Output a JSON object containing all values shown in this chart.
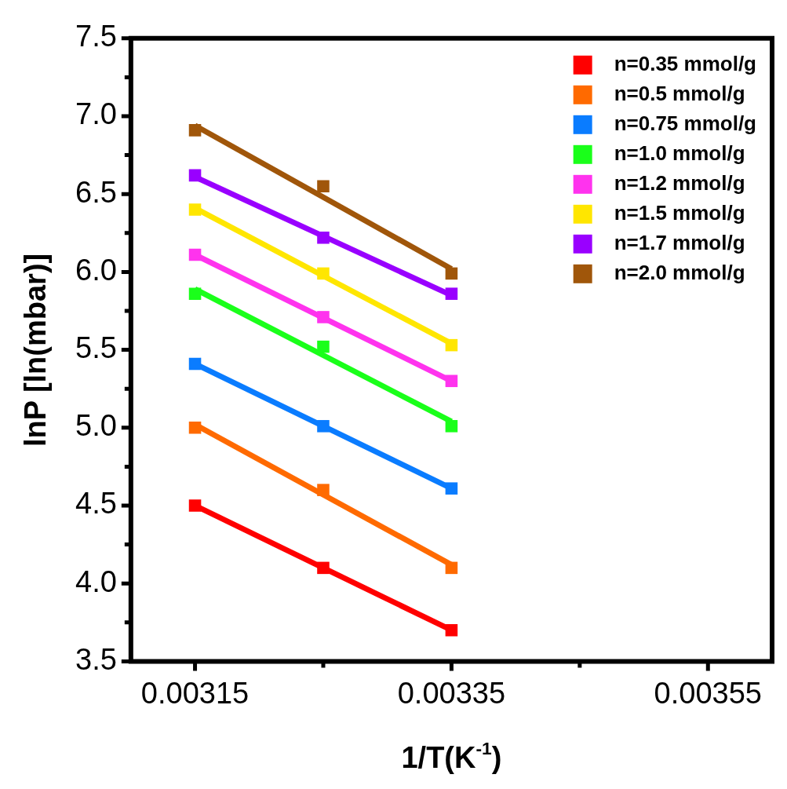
{
  "chart_data": {
    "type": "scatter",
    "xlabel": "1/T(K$^{-1}$)",
    "ylabel": "lnP [ln(mbar)]",
    "xlim": [
      0.0031,
      0.0036
    ],
    "xticks": [
      0.00315,
      {
        "value": 0.00325,
        "label": null
      },
      0.00335,
      {
        "value": 0.00345,
        "label": null
      },
      0.00355
    ],
    "ylim": [
      3.5,
      7.5
    ],
    "yticks": [
      3.5,
      {
        "value": 3.75,
        "label": null
      },
      {
        "value": 4,
        "label": "4.0"
      },
      {
        "value": 4.25,
        "label": null
      },
      4.5,
      {
        "value": 4.75,
        "label": null
      },
      {
        "value": 5,
        "label": "5.0"
      },
      {
        "value": 5.25,
        "label": null
      },
      5.5,
      {
        "value": 5.75,
        "label": null
      },
      {
        "value": 6,
        "label": "6.0"
      },
      {
        "value": 6.25,
        "label": null
      },
      6.5,
      {
        "value": 6.75,
        "label": null
      },
      {
        "value": 7,
        "label": "7.0"
      },
      {
        "value": 7.25,
        "label": null
      },
      7.5
    ],
    "marker": "square",
    "legend": "top right",
    "line_style": "solid",
    "series": [
      {
        "name": "n=0.35 mmol/g",
        "color": "#ff0000",
        "x": [
          0.00315,
          0.00325,
          0.00335
        ],
        "values": [
          4.5,
          4.1,
          3.7
        ]
      },
      {
        "name": "n=0.5 mmol/g",
        "color": "#ff6a00",
        "x": [
          0.00315,
          0.00325,
          0.00335
        ],
        "values": [
          5.0,
          4.6,
          4.1
        ]
      },
      {
        "name": "n=0.75 mmol/g",
        "color": "#0a7cff",
        "x": [
          0.00315,
          0.00325,
          0.00335
        ],
        "values": [
          5.41,
          5.01,
          4.61
        ]
      },
      {
        "name": "n=1.0 mmol/g",
        "color": "#1aff1a",
        "x": [
          0.00315,
          0.00325,
          0.00335
        ],
        "values": [
          5.86,
          5.52,
          5.01
        ]
      },
      {
        "name": "n=1.2 mmol/g",
        "color": "#ff33ee",
        "x": [
          0.00315,
          0.00325,
          0.00335
        ],
        "values": [
          6.11,
          5.71,
          5.3
        ]
      },
      {
        "name": "n=1.5 mmol/g",
        "color": "#ffe600",
        "x": [
          0.00315,
          0.00325,
          0.00335
        ],
        "values": [
          6.4,
          5.99,
          5.53
        ]
      },
      {
        "name": "n=1.7 mmol/g",
        "color": "#9900ff",
        "x": [
          0.00315,
          0.00325,
          0.00335
        ],
        "values": [
          6.62,
          6.22,
          5.86
        ]
      },
      {
        "name": "n=2.0 mmol/g",
        "color": "#a0560a",
        "x": [
          0.00315,
          0.00325,
          0.00335
        ],
        "values": [
          6.91,
          6.55,
          5.99
        ]
      },
      {
        "type": "line",
        "marker": "none",
        "color": "#ff0000",
        "x": [
          0.00315,
          0.00335
        ],
        "values": [
          4.5,
          3.7
        ]
      },
      {
        "type": "line",
        "marker": "none",
        "color": "#ff6a00",
        "x": [
          0.00315,
          0.00335
        ],
        "values": [
          5.02,
          4.12
        ]
      },
      {
        "type": "line",
        "marker": "none",
        "color": "#0a7cff",
        "x": [
          0.00315,
          0.00335
        ],
        "values": [
          5.41,
          4.61
        ]
      },
      {
        "type": "line",
        "marker": "none",
        "color": "#1aff1a",
        "x": [
          0.00315,
          0.00335
        ],
        "values": [
          5.89,
          5.04
        ]
      },
      {
        "type": "line",
        "marker": "none",
        "color": "#ff33ee",
        "x": [
          0.00315,
          0.00335
        ],
        "values": [
          6.11,
          5.3
        ]
      },
      {
        "type": "line",
        "marker": "none",
        "color": "#ffe600",
        "x": [
          0.00315,
          0.00335
        ],
        "values": [
          6.41,
          5.54
        ]
      },
      {
        "type": "line",
        "marker": "none",
        "color": "#9900ff",
        "x": [
          0.00315,
          0.00335
        ],
        "values": [
          6.61,
          5.85
        ]
      },
      {
        "type": "line",
        "marker": "none",
        "color": "#a0560a",
        "x": [
          0.00315,
          0.00335
        ],
        "values": [
          6.94,
          6.02
        ]
      }
    ]
  }
}
